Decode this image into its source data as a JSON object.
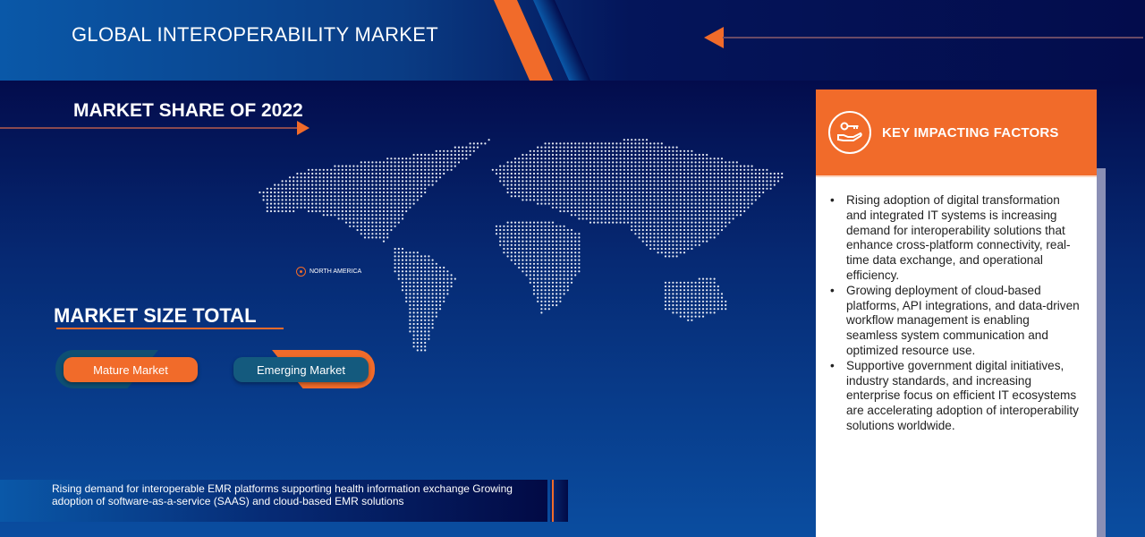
{
  "header": {
    "title": "GLOBAL INTEROPERABILITY MARKET"
  },
  "share": {
    "title": "MARKET SHARE OF 2022",
    "region_label": "NORTH AMERICA"
  },
  "size": {
    "title": "MARKET SIZE TOTAL",
    "buttons": [
      {
        "label": "Mature Market"
      },
      {
        "label": "Emerging Market"
      }
    ]
  },
  "bottom": {
    "text": "Rising demand for interoperable EMR platforms supporting health information exchange Growing adoption of software-as-a-service (SAAS) and cloud-based EMR solutions"
  },
  "factors": {
    "title": "KEY IMPACTING FACTORS",
    "icon": "hand-key-icon",
    "items": [
      "Rising adoption of digital transformation and integrated IT systems is increasing demand for interoperability solutions that enhance cross-platform connectivity, real-time data exchange, and operational efficiency.",
      "Growing deployment of cloud-based platforms, API integrations, and data-driven workflow management is enabling seamless system communication and optimized resource use.",
      "Supportive government digital initiatives, industry standards, and increasing enterprise focus on efficient IT ecosystems are accelerating adoption of interoperability solutions worldwide."
    ]
  },
  "colors": {
    "accent": "#f16b2a",
    "navy": "#030c4c",
    "teal": "#145a7e"
  }
}
